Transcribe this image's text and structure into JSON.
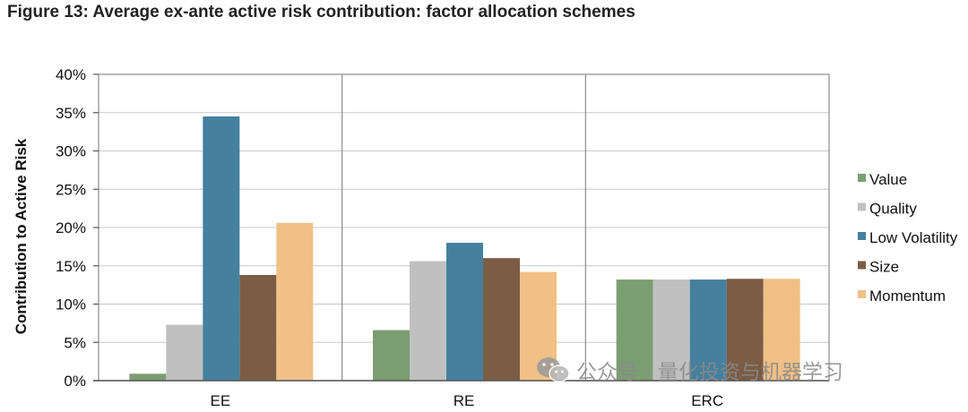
{
  "figure_title": "Figure 13: Average ex-ante active risk contribution: factor allocation schemes",
  "watermark_text": "公众号 · 量化投资与机器学习",
  "chart_data": {
    "type": "bar",
    "title": "",
    "xlabel": "",
    "ylabel": "Contribution to Active Risk",
    "ylim": [
      0,
      40
    ],
    "yticks": [
      "0%",
      "5%",
      "10%",
      "15%",
      "20%",
      "25%",
      "30%",
      "35%",
      "40%"
    ],
    "grid": true,
    "legend_position": "right",
    "categories": [
      "EE",
      "RE",
      "ERC"
    ],
    "series": [
      {
        "name": "Value",
        "color": "#7b9d72",
        "values": [
          0.9,
          6.6,
          13.2
        ]
      },
      {
        "name": "Quality",
        "color": "#c0c0c0",
        "values": [
          7.3,
          15.6,
          13.2
        ]
      },
      {
        "name": "Low Volatility",
        "color": "#45809f",
        "values": [
          34.5,
          18.0,
          13.2
        ]
      },
      {
        "name": "Size",
        "color": "#7b5c45",
        "values": [
          13.8,
          16.0,
          13.3
        ]
      },
      {
        "name": "Momentum",
        "color": "#f0c086",
        "values": [
          20.6,
          14.2,
          13.3
        ]
      }
    ]
  }
}
